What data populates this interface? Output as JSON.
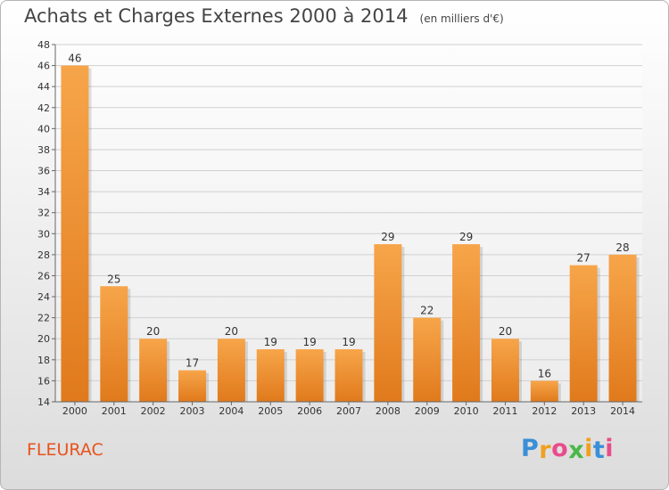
{
  "header": {
    "title": "Achats et Charges Externes 2000 à 2014",
    "unit": "(en milliers d'€)"
  },
  "footer": {
    "city": "FLEURAC",
    "logo_letters": [
      "P",
      "r",
      "o",
      "x",
      "i",
      "t",
      "i"
    ],
    "logo_colors": [
      "#3a8fd8",
      "#f0a020",
      "#e94c8a",
      "#49b848",
      "#f0a020",
      "#3a8fd8",
      "#e94c8a"
    ]
  },
  "chart_data": {
    "type": "bar",
    "categories": [
      "2000",
      "2001",
      "2002",
      "2003",
      "2004",
      "2005",
      "2006",
      "2007",
      "2008",
      "2009",
      "2010",
      "2011",
      "2012",
      "2013",
      "2014"
    ],
    "values": [
      46,
      25,
      20,
      17,
      20,
      19,
      19,
      19,
      29,
      22,
      29,
      20,
      16,
      27,
      28
    ],
    "title": "Achats et Charges Externes 2000 à 2014",
    "subtitle": "(en milliers d'€)",
    "xlabel": "",
    "ylabel": "",
    "ylim": [
      14,
      48
    ],
    "yticks": [
      14,
      16,
      18,
      20,
      22,
      24,
      26,
      28,
      30,
      32,
      34,
      36,
      38,
      40,
      42,
      44,
      46,
      48
    ],
    "grid": true,
    "bar_color_top": "#f7a54a",
    "bar_color_bottom": "#e07a1c"
  }
}
